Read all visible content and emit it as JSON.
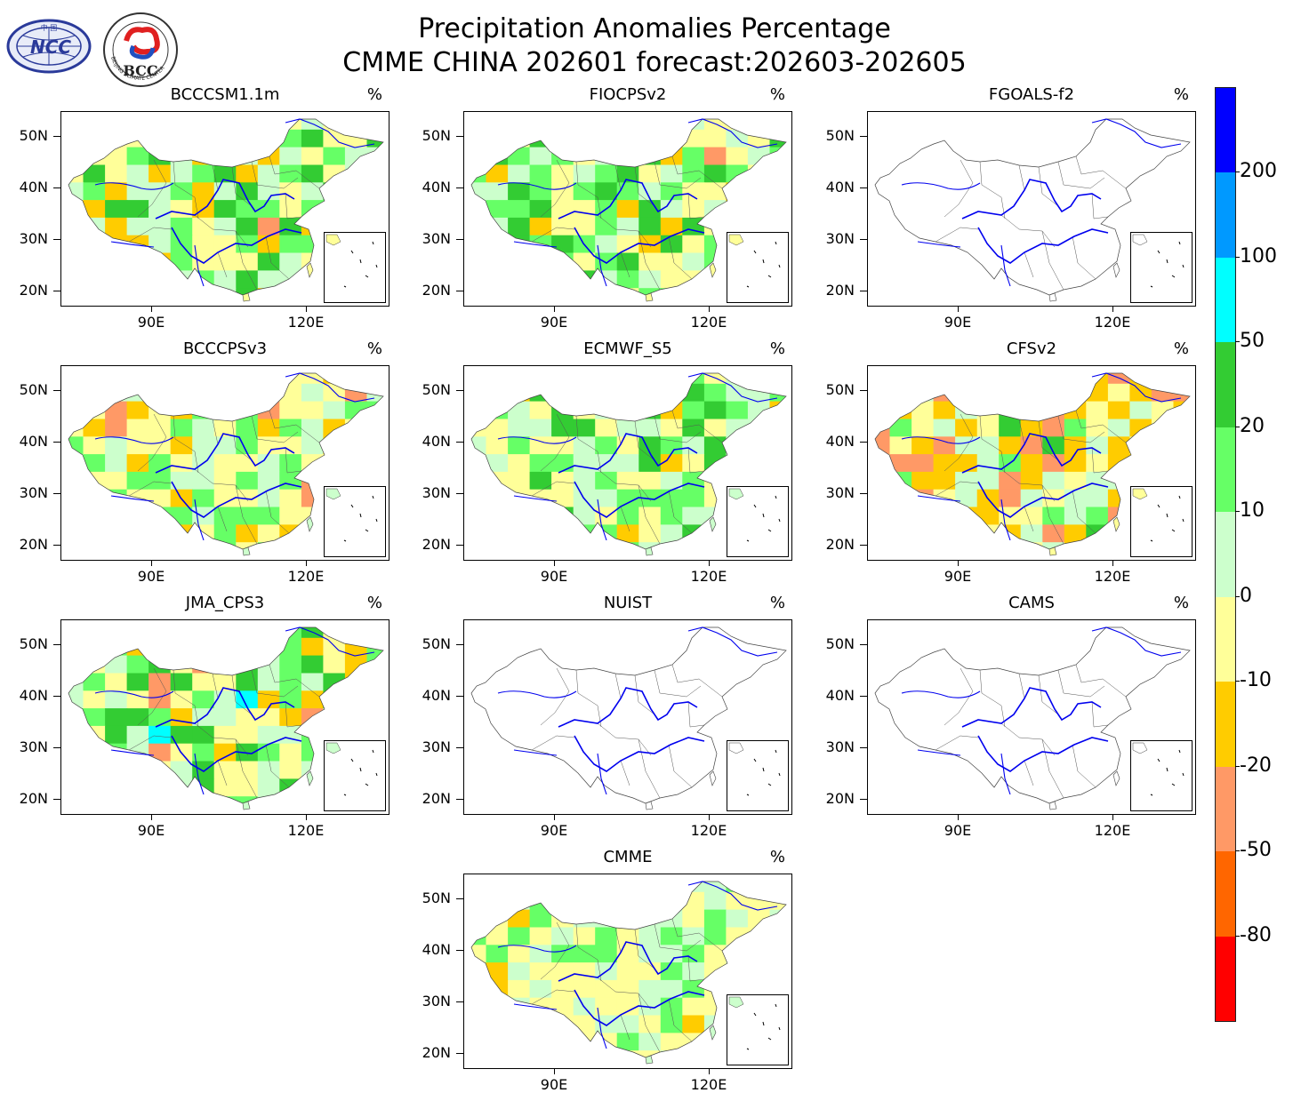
{
  "header": {
    "title_line1": "Precipitation Anomalies Percentage",
    "title_line2": "CMME CHINA 202601 forecast:202603-202605"
  },
  "logos": {
    "ncc": {
      "text": "NCC",
      "arc_text": "中 国"
    },
    "bcc": {
      "text": "BCC",
      "arc_text": "BEIJING CLIMATE CENTER"
    }
  },
  "axes": {
    "y_labels": [
      "50N",
      "40N",
      "30N",
      "20N"
    ],
    "x_labels": [
      "90E",
      "120E"
    ]
  },
  "unit": "%",
  "panels": [
    {
      "name": "BCCCSM1.1m",
      "fill": "mixed",
      "palette": [
        "#ffff99",
        "#ccffcc",
        "#66ff66",
        "#33cc33",
        "#ffcc00",
        "#ff9966"
      ]
    },
    {
      "name": "FIOCPSv2",
      "fill": "mixed",
      "palette": [
        "#ffff99",
        "#ccffcc",
        "#66ff66",
        "#33cc33",
        "#ffcc00",
        "#ff9966"
      ]
    },
    {
      "name": "FGOALS-f2",
      "fill": "none",
      "palette": []
    },
    {
      "name": "BCCCPSv3",
      "fill": "mixed",
      "palette": [
        "#ccffcc",
        "#ffff99",
        "#66ff66",
        "#ffcc00",
        "#ff9966"
      ]
    },
    {
      "name": "ECMWF_S5",
      "fill": "mixed",
      "palette": [
        "#ccffcc",
        "#ffff99",
        "#66ff66",
        "#33cc33",
        "#ffcc00"
      ]
    },
    {
      "name": "CFSv2",
      "fill": "mixed",
      "palette": [
        "#ffff99",
        "#ccffcc",
        "#ffcc00",
        "#ff9966",
        "#66ff66",
        "#33cc33"
      ]
    },
    {
      "name": "JMA_CPS3",
      "fill": "mixed",
      "palette": [
        "#ccffcc",
        "#66ff66",
        "#33cc33",
        "#ffff99",
        "#ffcc00",
        "#ff9966",
        "#00ffff"
      ]
    },
    {
      "name": "NUIST",
      "fill": "none",
      "palette": []
    },
    {
      "name": "CAMS",
      "fill": "none",
      "palette": []
    },
    {
      "name": "CMME",
      "fill": "mixed",
      "palette": [
        "#ccffcc",
        "#ffff99",
        "#66ff66",
        "#ffcc00"
      ]
    }
  ],
  "colorbar": {
    "labels": [
      "200",
      "100",
      "50",
      "20",
      "10",
      "0",
      "-10",
      "-20",
      "-50",
      "-80"
    ],
    "colors": [
      "#0000ff",
      "#0099ff",
      "#00ffff",
      "#33cc33",
      "#66ff66",
      "#ccffcc",
      "#ffff99",
      "#ffcc00",
      "#ff9966",
      "#ff6600",
      "#ff0000"
    ]
  }
}
